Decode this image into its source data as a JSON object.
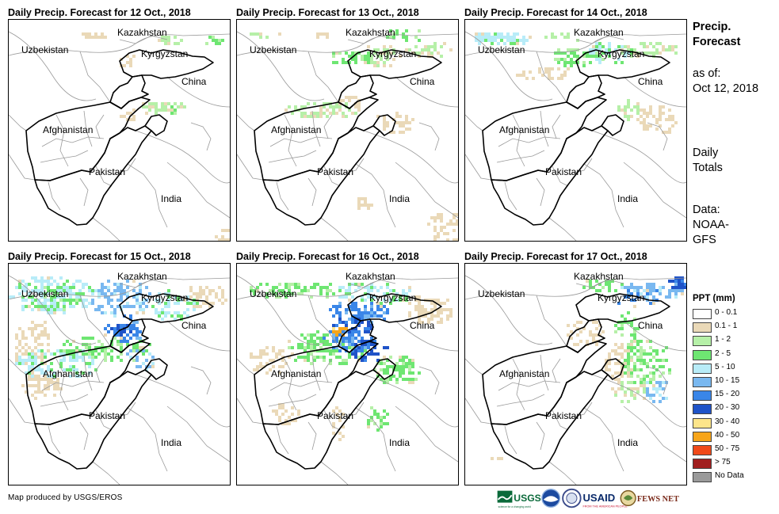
{
  "maps": [
    {
      "title": "Daily Precip. Forecast for 12 Oct., 2018",
      "id": "12"
    },
    {
      "title": "Daily Precip. Forecast for 13 Oct., 2018",
      "id": "13"
    },
    {
      "title": "Daily Precip. Forecast for 14 Oct., 2018",
      "id": "14"
    },
    {
      "title": "Daily Precip. Forecast for 15 Oct., 2018",
      "id": "15"
    },
    {
      "title": "Daily Precip. Forecast for 16 Oct., 2018",
      "id": "16"
    },
    {
      "title": "Daily Precip. Forecast for 17 Oct., 2018",
      "id": "17"
    }
  ],
  "countries": {
    "kazakhstan": "Kazakhstan",
    "uzbekistan": "Uzbekistan",
    "kyrgyzstan": "Kyrgyzstan",
    "china": "China",
    "afghanistan": "Afghanistan",
    "pakistan": "Pakistan",
    "india": "India"
  },
  "side": {
    "title_line1": "Precip.",
    "title_line2": "Forecast",
    "asof_line1": "as of:",
    "asof_line2": "Oct 12, 2018",
    "daily_line1": "Daily",
    "daily_line2": "Totals",
    "data_line1": "Data:",
    "data_line2": "NOAA-",
    "data_line3": "GFS"
  },
  "legend": {
    "title": "PPT (mm)",
    "items": [
      {
        "label": "0 - 0.1",
        "color": "#ffffff"
      },
      {
        "label": "0.1 - 1",
        "color": "#ead9b8"
      },
      {
        "label": "1 - 2",
        "color": "#b6f0a8"
      },
      {
        "label": "2 - 5",
        "color": "#6ee672"
      },
      {
        "label": "5 - 10",
        "color": "#b8ecf8"
      },
      {
        "label": "10 - 15",
        "color": "#79b8f0"
      },
      {
        "label": "15 - 20",
        "color": "#3a86e8"
      },
      {
        "label": "20 - 30",
        "color": "#1f53c8"
      },
      {
        "label": "30 - 40",
        "color": "#fde58a"
      },
      {
        "label": "40 - 50",
        "color": "#f7a51a"
      },
      {
        "label": "50 - 75",
        "color": "#f04a1a"
      },
      {
        "label": "> 75",
        "color": "#a11f1f"
      },
      {
        "label": "No Data",
        "color": "#9a9a9a"
      }
    ]
  },
  "credit": "Map produced by USGS/EROS",
  "logos": {
    "usgs": "USGS",
    "usgs_tagline": "science for a changing world",
    "usaid": "USAID",
    "usaid_tagline": "FROM THE AMERICAN PEOPLE",
    "fewsnet": "FEWS NET"
  }
}
